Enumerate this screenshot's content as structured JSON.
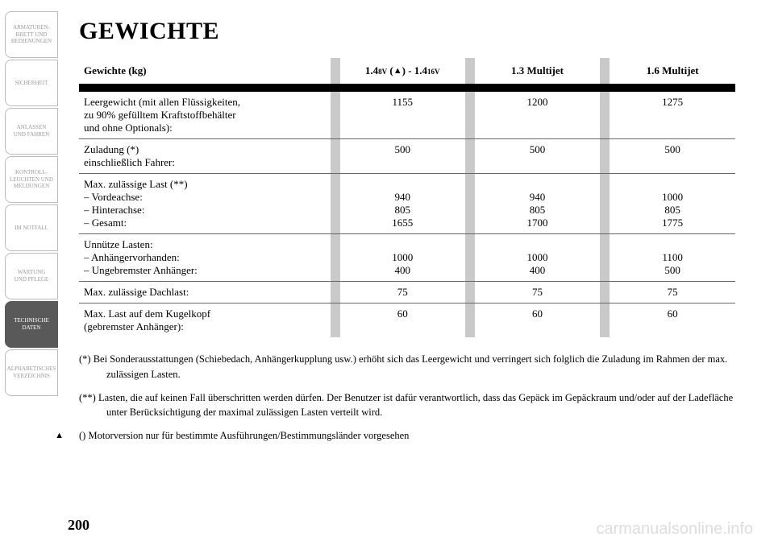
{
  "sidebar": {
    "tabs": [
      {
        "label": "ARMATUREN-\nBRETT UND\nBEDIENUNGEN",
        "active": false
      },
      {
        "label": "SICHERHEIT",
        "active": false
      },
      {
        "label": "ANLASSEN\nUND FAHREN",
        "active": false
      },
      {
        "label": "KONTROLL-\nLEUCHTEN UND\nMELDUNGEN",
        "active": false
      },
      {
        "label": "IM NOTFALL",
        "active": false
      },
      {
        "label": "WARTUNG\nUND PFLEGE",
        "active": false
      },
      {
        "label": "TECHNISCHE\nDATEN",
        "active": true
      },
      {
        "label": "ALPHABETISCHES\nVERZEICHNIS",
        "active": false
      }
    ]
  },
  "title": "GEWICHTE",
  "table": {
    "header": {
      "rowlabel": "Gewichte (kg)",
      "col1_pre": "1.4",
      "col1_small1": "8V",
      "col1_mid": " (",
      "col1_tri": "▲",
      "col1_post": ") - 1.4",
      "col1_small2": "16V",
      "col2": "1.3 Multijet",
      "col3": "1.6 Multijet"
    },
    "rows": [
      {
        "label": "Leergewicht (mit allen Flüssigkeiten,\nzu 90% gefülltem Kraftstoffbehälter\nund ohne Optionals):",
        "v1": "1155",
        "v2": "1200",
        "v3": "1275"
      },
      {
        "label": "Zuladung (*)\neinschließlich Fahrer:",
        "v1": "500",
        "v2": "500",
        "v3": "500"
      },
      {
        "label": "Max. zulässige Last (**)\n– Vordeachse:\n– Hinterachse:\n– Gesamt:",
        "v1": "\n940\n805\n1655",
        "v2": "\n940\n805\n1700",
        "v3": "\n1000\n805\n1775"
      },
      {
        "label": "Unnütze Lasten:\n– Anhängervorhanden:\n– Ungebremster Anhänger:",
        "v1": "\n1000\n400",
        "v2": "\n1000\n400",
        "v3": "\n1100\n500"
      },
      {
        "label": "Max. zulässige Dachlast:",
        "v1": "75",
        "v2": "75",
        "v3": "75"
      },
      {
        "label": "Max. Last auf dem Kugelkopf\n(gebremster Anhänger):",
        "v1": "60",
        "v2": "60",
        "v3": "60"
      }
    ]
  },
  "notes": {
    "n1": "(*)   Bei Sonderausstattungen (Schiebedach, Anhängerkupplung usw.) erhöht sich das Leergewicht und verringert sich folglich die Zuladung im Rahmen der max. zulässigen Lasten.",
    "n2": "(**) Lasten, die auf keinen Fall überschritten werden dürfen. Der Benutzer ist dafür verantwortlich, dass das Gepäck im Gepäckraum und/oder auf der Ladefläche unter Berücksichtigung der maximal zulässigen Lasten verteilt wird.",
    "n3_pre": "(",
    "n3_tri": "▲",
    "n3_post": ") Motorversion nur für bestimmte Ausführungen/Bestimmungsländer vorgesehen"
  },
  "pagenum": "200",
  "watermark": "carmanualsonline.info"
}
